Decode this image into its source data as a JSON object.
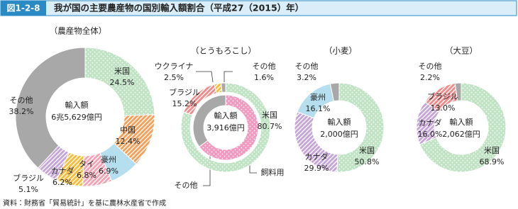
{
  "header": {
    "label": "図1-2-8",
    "title": "我が国の主要農産物の国別輸入額割合（平成27（2015）年）"
  },
  "source": "資料：財務省「貿易統計」を基に農林水産省で作成",
  "chart_data": [
    {
      "type": "donut",
      "title": "（農産物全体）",
      "center_label": "輸入額",
      "center_value": "6兆5,629億円",
      "categories": [
        "米国",
        "中国",
        "豪州",
        "タイ",
        "カナダ",
        "ブラジル",
        "その他"
      ],
      "values": [
        24.5,
        12.4,
        6.9,
        6.8,
        6.2,
        5.1,
        38.2
      ],
      "value_labels": [
        "24.5%",
        "12.4%",
        "6.9%",
        "6.8%",
        "6.2%",
        "5.1%",
        "38.2%"
      ],
      "colors": [
        "#bfe3c3",
        "#f5a05a",
        "#b5dfee",
        "#f2a3b3",
        "#f6bd3b",
        "#c7a4d8",
        "#a8a8a8"
      ],
      "patterns": [
        "dots",
        "hatch",
        "solid",
        "hatch",
        "hatch",
        "hatch",
        "solid"
      ]
    },
    {
      "type": "donut",
      "title": "（とうもろこし）",
      "center_label": "輸入額",
      "center_value": "3,916億円",
      "categories": [
        "米国",
        "ブラジル",
        "ウクライナ",
        "その他"
      ],
      "values": [
        80.7,
        15.2,
        2.5,
        1.6
      ],
      "value_labels": [
        "80.7%",
        "15.2%",
        "2.5%",
        "1.6%"
      ],
      "colors": [
        "#bfe3c3",
        "#ef8a8a",
        "#f6bd3b",
        "#a8a8a8"
      ],
      "patterns": [
        "dots",
        "hatch",
        "hatch",
        "solid"
      ],
      "inner": {
        "categories": [
          "飼料用",
          "その他"
        ],
        "values": [
          65,
          35
        ],
        "colors": [
          "#f299c0",
          "#a8a8a8"
        ],
        "patterns": [
          "dots",
          "solid"
        ]
      }
    },
    {
      "type": "donut",
      "title": "（小麦）",
      "center_label": "輸入額",
      "center_value": "2,000億円",
      "categories": [
        "米国",
        "カナダ",
        "豪州",
        "その他"
      ],
      "values": [
        50.8,
        29.9,
        16.1,
        3.2
      ],
      "value_labels": [
        "50.8%",
        "29.9%",
        "16.1%",
        "3.2%"
      ],
      "colors": [
        "#bfe3c3",
        "#c7a4d8",
        "#b5dfee",
        "#a8a8a8"
      ],
      "patterns": [
        "dots",
        "hatch",
        "solid",
        "solid"
      ]
    },
    {
      "type": "donut",
      "title": "（大豆）",
      "center_label": "輸入額",
      "center_value": "2,062億円",
      "categories": [
        "米国",
        "カナダ",
        "ブラジル",
        "その他"
      ],
      "values": [
        68.9,
        16.0,
        13.0,
        2.2
      ],
      "value_labels": [
        "68.9%",
        "16.0%",
        "13.0%",
        "2.2%"
      ],
      "colors": [
        "#bfe3c3",
        "#c7a4d8",
        "#ef8a8a",
        "#a8a8a8"
      ],
      "patterns": [
        "dots",
        "hatch",
        "hatch",
        "solid"
      ]
    }
  ]
}
